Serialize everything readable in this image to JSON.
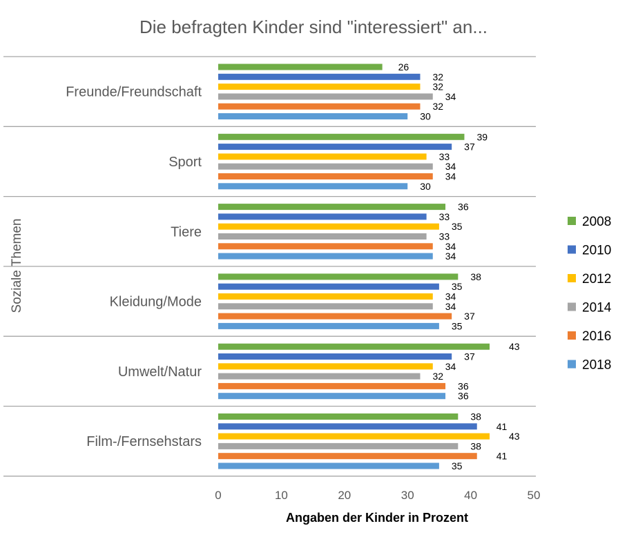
{
  "chart_data": {
    "type": "bar",
    "orientation": "horizontal",
    "title": "Die befragten Kinder sind \"interessiert\" an...",
    "xlabel": "Angaben der Kinder in Prozent",
    "ylabel": "Soziale Themen",
    "xlim": [
      0,
      50
    ],
    "xticks": [
      "0",
      "10",
      "20",
      "30",
      "40",
      "50"
    ],
    "grid": "horizontal separators between categories",
    "legend_position": "right",
    "categories": [
      "Freunde/Freundschaft",
      "Sport",
      "Tiere",
      "Kleidung/Mode",
      "Umwelt/Natur",
      "Film-/Fernsehstars"
    ],
    "series": [
      {
        "name": "2008",
        "color": "#70AD47",
        "values": [
          26,
          39,
          36,
          38,
          43,
          38
        ]
      },
      {
        "name": "2010",
        "color": "#4472C4",
        "values": [
          32,
          37,
          33,
          35,
          37,
          41
        ]
      },
      {
        "name": "2012",
        "color": "#FFC000",
        "values": [
          32,
          33,
          35,
          34,
          34,
          43
        ]
      },
      {
        "name": "2014",
        "color": "#A5A5A5",
        "values": [
          34,
          34,
          33,
          34,
          32,
          38
        ]
      },
      {
        "name": "2016",
        "color": "#ED7D31",
        "values": [
          32,
          34,
          34,
          37,
          36,
          41
        ]
      },
      {
        "name": "2018",
        "color": "#5B9BD5",
        "values": [
          30,
          30,
          34,
          35,
          36,
          35
        ]
      }
    ]
  }
}
